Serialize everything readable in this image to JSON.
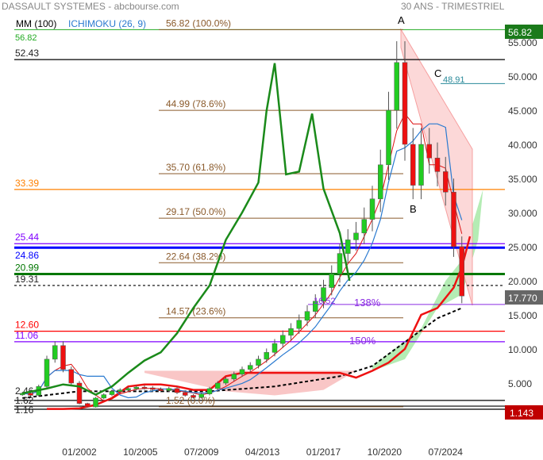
{
  "header": {
    "title": "DASSAULT SYSTEMES - abcbourse.com",
    "period": "30 ANS - TRIMESTRIEL",
    "legend_mm": "MM (100)",
    "legend_ichimoku": "ICHIMOKU (26, 9)"
  },
  "colors": {
    "up": "#22cc22",
    "down": "#ee1111",
    "mm": "#1a8a1a",
    "fib": "#8a5a2b",
    "ichimoku": "#2a7ad0"
  },
  "chart_data": {
    "type": "candlestick",
    "ylim": [
      0,
      57
    ],
    "y_ticks": [
      "5.000",
      "10.000",
      "15.000",
      "20.000",
      "25.000",
      "30.000",
      "35.000",
      "40.000",
      "45.000",
      "50.000",
      "55.000"
    ],
    "y_tick_values": [
      5,
      10,
      15,
      20,
      25,
      30,
      35,
      40,
      45,
      50,
      55
    ],
    "x_ticks": [
      "01/2002",
      "10/2005",
      "07/2009",
      "04/2013",
      "01/2017",
      "10/2020",
      "07/2024"
    ],
    "x_tick_values": [
      2002.0,
      2005.75,
      2009.5,
      2013.25,
      2017.0,
      2020.75,
      2024.5
    ],
    "price": {
      "x": [
        1998.5,
        1999,
        1999.5,
        2000,
        2000.5,
        2001,
        2001.5,
        2002,
        2002.5,
        2003,
        2003.5,
        2004,
        2004.5,
        2005,
        2005.5,
        2006,
        2006.5,
        2007,
        2007.5,
        2008,
        2008.5,
        2009,
        2009.5,
        2010,
        2010.5,
        2011,
        2011.5,
        2012,
        2012.5,
        2013,
        2013.5,
        2014,
        2014.5,
        2015,
        2015.5,
        2016,
        2016.5,
        2017,
        2017.5,
        2018,
        2018.5,
        2019,
        2019.5,
        2020,
        2020.5,
        2021,
        2021.5,
        2022,
        2022.5,
        2023,
        2023.5,
        2024,
        2024.5,
        2025,
        2025.5
      ],
      "close": [
        3.5,
        3.2,
        4.5,
        8.5,
        10.5,
        7,
        5,
        2,
        1.5,
        2.8,
        3.3,
        3.8,
        4,
        4.2,
        4.4,
        4.3,
        4.1,
        3.9,
        4.2,
        3.6,
        3.2,
        2.9,
        3.4,
        4.2,
        5,
        5.6,
        6.3,
        7,
        7.6,
        8.5,
        9.5,
        10.8,
        12,
        13,
        14.2,
        15.5,
        17,
        19,
        21,
        24,
        26,
        27,
        29,
        32,
        37,
        45,
        52,
        40,
        34,
        40,
        38,
        36,
        33,
        25,
        17.77
      ]
    },
    "mm_100": {
      "x": [
        1998.5,
        2000,
        2001,
        2002,
        2003,
        2004,
        2005,
        2006,
        2007,
        2008,
        2009,
        2010,
        2011,
        2012,
        2013,
        2013.5,
        2014,
        2014.7,
        2015.5,
        2016.3,
        2017,
        2018,
        2018.6
      ],
      "y": [
        3.5,
        4.2,
        4.8,
        4.5,
        3.3,
        4.5,
        6.5,
        8.3,
        9.5,
        12.3,
        16,
        19.3,
        26,
        30,
        34.4,
        44.9,
        51.9,
        35.6,
        36,
        44.5,
        33.5,
        27,
        20
      ]
    },
    "ichimoku_red": {
      "x": [
        2000,
        2001,
        2002,
        2003,
        2004,
        2005,
        2006,
        2007,
        2008,
        2009,
        2010,
        2011,
        2012,
        2013,
        2014,
        2015,
        2016,
        2017,
        2018,
        2019,
        2020,
        2021,
        2022,
        2023,
        2024,
        2024.5,
        2025,
        2025.5,
        2026
      ],
      "y": [
        1.2,
        1.2,
        1.3,
        1.8,
        2.8,
        4.5,
        4.8,
        4.8,
        4.5,
        4,
        4,
        6,
        6.5,
        6.5,
        6.5,
        6.5,
        6.5,
        6.5,
        6.5,
        5.8,
        6.8,
        8,
        10,
        15,
        16,
        17.5,
        19,
        22,
        26.5
      ]
    },
    "dashed_line": {
      "x": [
        1998.5,
        2002,
        2006,
        2010,
        2014,
        2018,
        2020,
        2022,
        2024,
        2025.5
      ],
      "y": [
        2.8,
        3.8,
        3.8,
        3.8,
        4.5,
        6,
        7.5,
        11,
        14.5,
        16
      ]
    },
    "levels": [
      {
        "label": "52.43",
        "value": 52.43,
        "color": "#000000"
      },
      {
        "label": "33.39",
        "value": 33.39,
        "color": "#ff8000"
      },
      {
        "label": "25.44",
        "value": 25.44,
        "color": "#8000ff"
      },
      {
        "label": "24.86",
        "value": 24.86,
        "color": "#0000ff"
      },
      {
        "label": "20.99",
        "value": 20.99,
        "color": "#007700"
      },
      {
        "label": "19.31",
        "value": 19.31,
        "color": "#000000"
      },
      {
        "label": "12.60",
        "value": 12.6,
        "color": "#ff0000"
      },
      {
        "label": "11.06",
        "value": 11.06,
        "color": "#8000ff"
      },
      {
        "label": "2.46",
        "value": 2.46,
        "color": "#000000"
      },
      {
        "label": "1.62",
        "value": 1.62,
        "color": "#000000"
      },
      {
        "label": "1.16",
        "value": 1.16,
        "color": "#000000"
      }
    ],
    "top_level": {
      "label": "56.82",
      "value": 56.82
    },
    "fibonacci": [
      {
        "label": "56.82  (100.0%)",
        "value": 56.82
      },
      {
        "label": "44.99  (78.6%)",
        "value": 44.99
      },
      {
        "label": "35.70  (61.8%)",
        "value": 35.7
      },
      {
        "label": "29.17  (50.0%)",
        "value": 29.17
      },
      {
        "label": "22.64  (38.2%)",
        "value": 22.64
      },
      {
        "label": "14.57  (23.6%)",
        "value": 14.57
      },
      {
        "label": "1.52  (0.0%)",
        "value": 1.52
      }
    ],
    "extensions": [
      {
        "label": "16.52",
        "pct": "138%",
        "value": 16.52
      },
      {
        "label": "150%",
        "value": 11.06
      }
    ],
    "points": {
      "A": "A",
      "B": "B",
      "C": "C",
      "c_value": "48.91"
    },
    "badges": {
      "high": "56.82",
      "last": "17.770",
      "low": "1.143"
    }
  }
}
